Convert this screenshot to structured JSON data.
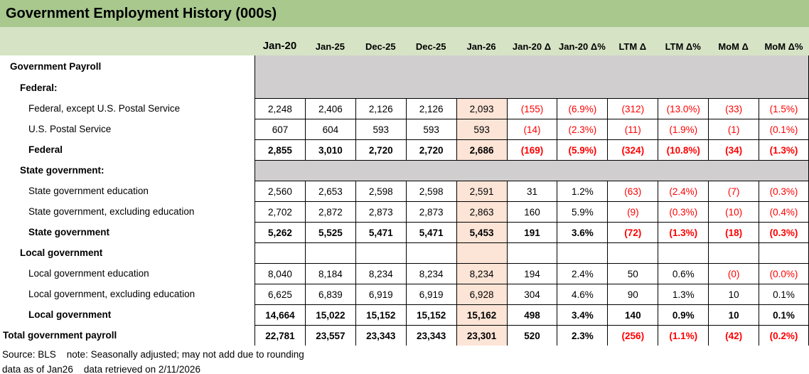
{
  "title": "Government Employment History (000s)",
  "colors": {
    "title_bar_green": "#A8C88E",
    "header_band_green": "#D6E3C5",
    "section_gray": "#D0CECE",
    "jan26_highlight_peach": "#FCE4D6",
    "negative_red": "#FF0000",
    "grid_border": "#000000"
  },
  "columns": [
    "Jan-20",
    "Jan-25",
    "Dec-25",
    "Dec-25",
    "Jan-26",
    "Jan-20 Δ",
    "Jan-20 Δ%",
    "LTM Δ",
    "LTM Δ%",
    "MoM Δ",
    "MoM Δ%"
  ],
  "highlight_column_index": 4,
  "rows": [
    {
      "label": "Government Payroll",
      "type": "gray",
      "bold": true,
      "indent": 1,
      "cells": []
    },
    {
      "label": "Federal:",
      "type": "gray",
      "bold": true,
      "indent": 2,
      "cells": []
    },
    {
      "label": "Federal, except U.S. Postal Service",
      "type": "data",
      "bold": false,
      "indent": 3,
      "cells": [
        "2,248",
        "2,406",
        "2,126",
        "2,126",
        "2,093",
        "(155)",
        "(6.9%)",
        "(312)",
        "(13.0%)",
        "(33)",
        "(1.5%)"
      ]
    },
    {
      "label": "U.S. Postal Service",
      "type": "data",
      "bold": false,
      "indent": 3,
      "cells": [
        "607",
        "604",
        "593",
        "593",
        "593",
        "(14)",
        "(2.3%)",
        "(11)",
        "(1.9%)",
        "(1)",
        "(0.1%)"
      ]
    },
    {
      "label": "Federal",
      "type": "data",
      "bold": true,
      "indent": 3,
      "cells": [
        "2,855",
        "3,010",
        "2,720",
        "2,720",
        "2,686",
        "(169)",
        "(5.9%)",
        "(324)",
        "(10.8%)",
        "(34)",
        "(1.3%)"
      ]
    },
    {
      "label": "State government:",
      "type": "gray",
      "bold": true,
      "indent": 2,
      "topline": true,
      "cells": []
    },
    {
      "label": "State government education",
      "type": "data",
      "bold": false,
      "indent": 3,
      "cells": [
        "2,560",
        "2,653",
        "2,598",
        "2,598",
        "2,591",
        "31",
        "1.2%",
        "(63)",
        "(2.4%)",
        "(7)",
        "(0.3%)"
      ]
    },
    {
      "label": "State government, excluding education",
      "type": "data",
      "bold": false,
      "indent": 3,
      "cells": [
        "2,702",
        "2,872",
        "2,873",
        "2,873",
        "2,863",
        "160",
        "5.9%",
        "(9)",
        "(0.3%)",
        "(10)",
        "(0.4%)"
      ]
    },
    {
      "label": "State government",
      "type": "data",
      "bold": true,
      "indent": 3,
      "cells": [
        "5,262",
        "5,525",
        "5,471",
        "5,471",
        "5,453",
        "191",
        "3.6%",
        "(72)",
        "(1.3%)",
        "(18)",
        "(0.3%)"
      ]
    },
    {
      "label": "Local government",
      "type": "empty",
      "bold": true,
      "indent": 2,
      "cells": []
    },
    {
      "label": "Local government education",
      "type": "data",
      "bold": false,
      "indent": 3,
      "cells": [
        "8,040",
        "8,184",
        "8,234",
        "8,234",
        "8,234",
        "194",
        "2.4%",
        "50",
        "0.6%",
        "(0)",
        "(0.0%)"
      ]
    },
    {
      "label": "Local government, excluding education",
      "type": "data",
      "bold": false,
      "indent": 3,
      "cells": [
        "6,625",
        "6,839",
        "6,919",
        "6,919",
        "6,928",
        "304",
        "4.6%",
        "90",
        "1.3%",
        "10",
        "0.1%"
      ]
    },
    {
      "label": "Local government",
      "type": "data",
      "bold": true,
      "indent": 3,
      "cells": [
        "14,664",
        "15,022",
        "15,152",
        "15,152",
        "15,162",
        "498",
        "3.4%",
        "140",
        "0.9%",
        "10",
        "0.1%"
      ]
    },
    {
      "label": "Total government payroll",
      "type": "data",
      "bold": true,
      "indent": 0,
      "cells": [
        "22,781",
        "23,557",
        "23,343",
        "23,343",
        "23,301",
        "520",
        "2.3%",
        "(256)",
        "(1.1%)",
        "(42)",
        "(0.2%)"
      ]
    }
  ],
  "footer": {
    "line1": "Source: BLS    note: Seasonally adjusted; may not add due to rounding",
    "line2": "data as of Jan26    data retrieved on 2/11/2026"
  }
}
